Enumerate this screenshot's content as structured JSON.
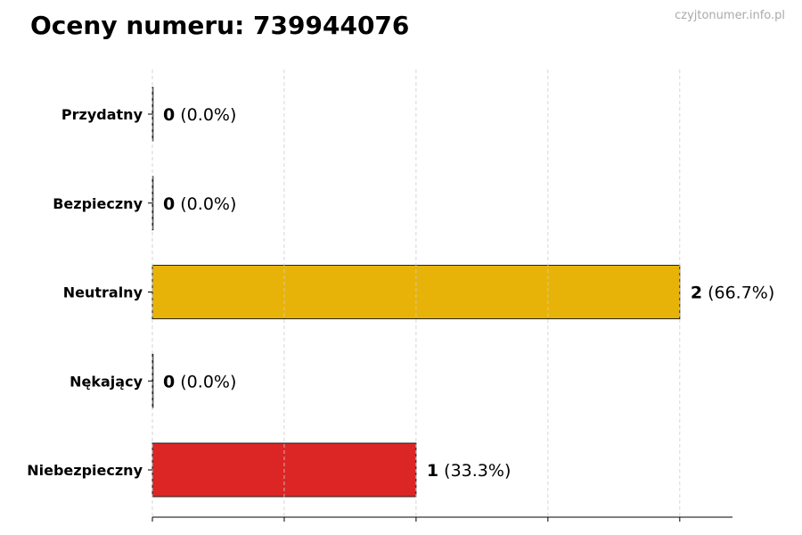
{
  "watermark": "czyjtonumer.info.pl",
  "chart_data": {
    "type": "bar",
    "orientation": "horizontal",
    "title": "Oceny numeru: 739944076",
    "categories": [
      "Przydatny",
      "Bezpieczny",
      "Neutralny",
      "Nękający",
      "Niebezpieczny"
    ],
    "values": [
      0,
      0,
      2,
      0,
      1
    ],
    "percent_labels": [
      "(0.0%)",
      "(0.0%)",
      "(66.7%)",
      "(0.0%)",
      "(33.3%)"
    ],
    "colors": [
      "#22c55e",
      "#3b82f6",
      "#E8B308",
      "#f97316",
      "#DC2626"
    ],
    "xlim": [
      0,
      2.2
    ],
    "xticks": [
      0,
      0.5,
      1,
      1.5,
      2
    ],
    "xtick_labels_visible": false,
    "grid": "vertical dashed",
    "xlabel": "",
    "ylabel": ""
  }
}
